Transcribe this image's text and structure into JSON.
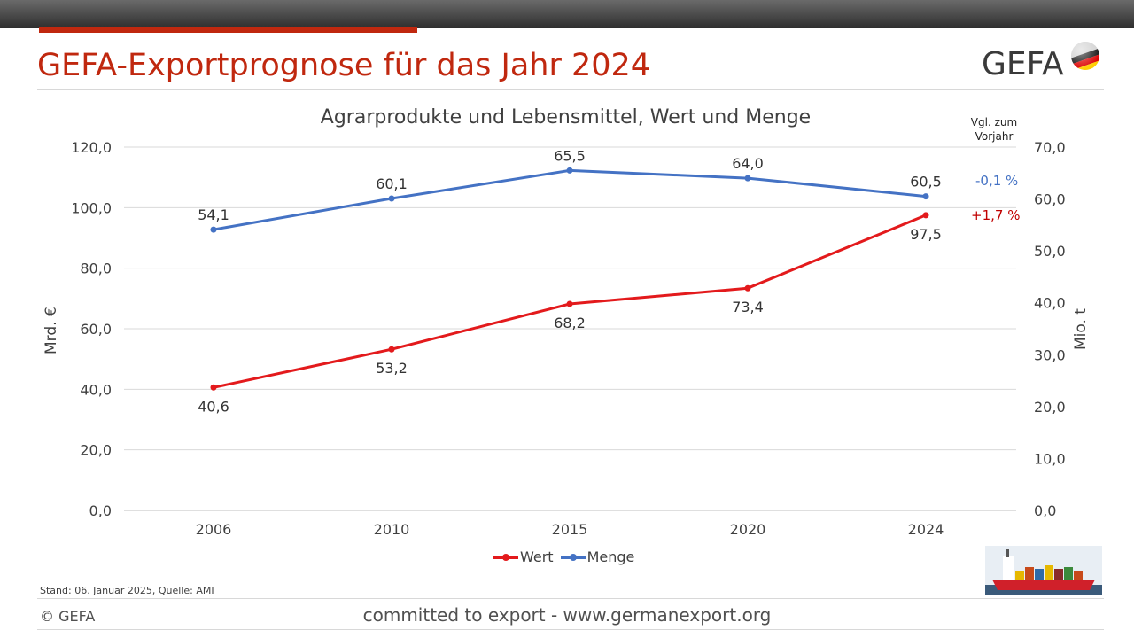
{
  "slide": {
    "title": "GEFA-Exportprognose für das Jahr 2024",
    "logo_text": "GEFA",
    "source_note": "Stand: 06. Januar 2025, Quelle: AMI",
    "copyright": "© GEFA",
    "footer": "committed to export - www.germanexport.org"
  },
  "comparison": {
    "header": "Vgl. zum Vorjahr",
    "menge_change": "-0,1 %",
    "wert_change": "+1,7 %"
  },
  "colors": {
    "accent_red": "#c0280f",
    "wert": "#e31a1c",
    "menge": "#4472c4",
    "menge_change": "#4472c4",
    "wert_change": "#c00000"
  },
  "chart_data": {
    "type": "line",
    "title": "Agrarprodukte und Lebensmittel, Wert und Menge",
    "categories": [
      "2006",
      "2010",
      "2015",
      "2020",
      "2024"
    ],
    "y_left": {
      "label": "Mrd. €",
      "min": 0,
      "max": 120,
      "step": 20,
      "ticks": [
        "0,0",
        "20,0",
        "40,0",
        "60,0",
        "80,0",
        "100,0",
        "120,0"
      ]
    },
    "y_right": {
      "label": "Mio. t",
      "min": 0,
      "max": 70,
      "step": 10,
      "ticks": [
        "0,0",
        "10,0",
        "20,0",
        "30,0",
        "40,0",
        "50,0",
        "60,0",
        "70,0"
      ]
    },
    "grid": true,
    "legend_position": "bottom",
    "series": [
      {
        "name": "Wert",
        "axis": "left",
        "values": [
          40.6,
          53.2,
          68.2,
          73.4,
          97.5
        ],
        "labels": [
          "40,6",
          "53,2",
          "68,2",
          "73,4",
          "97,5"
        ]
      },
      {
        "name": "Menge",
        "axis": "right",
        "values": [
          54.1,
          60.1,
          65.5,
          64.0,
          60.5
        ],
        "labels": [
          "54,1",
          "60,1",
          "65,5",
          "64,0",
          "60,5"
        ]
      }
    ]
  }
}
